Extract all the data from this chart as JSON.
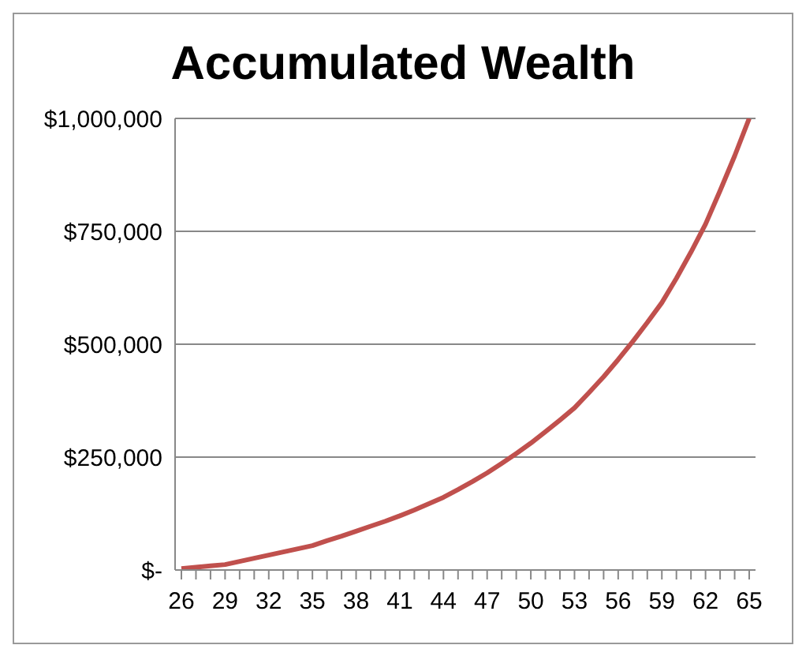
{
  "chart_data": {
    "type": "line",
    "title": "Accumulated Wealth",
    "categories": [
      "26",
      null,
      null,
      "29",
      null,
      null,
      "32",
      null,
      null,
      "35",
      null,
      null,
      "38",
      null,
      null,
      "41",
      null,
      null,
      "44",
      null,
      null,
      "47",
      null,
      null,
      "50",
      null,
      null,
      "53",
      null,
      null,
      "56",
      null,
      null,
      "59",
      null,
      null,
      "62",
      null,
      null,
      "65"
    ],
    "series": [
      {
        "color": "#c0504d",
        "values": [
          3000,
          6000,
          9000,
          12000,
          19000,
          26000,
          33000,
          40000,
          47000,
          54000,
          65000,
          75000,
          86000,
          97000,
          108000,
          120000,
          133000,
          147000,
          161000,
          178000,
          196000,
          215000,
          236000,
          258000,
          281000,
          306000,
          332000,
          359000,
          393000,
          428000,
          466000,
          506000,
          548000,
          592000,
          646000,
          704000,
          766000,
          840000,
          917000,
          1000000
        ]
      }
    ],
    "ylim": [
      0,
      1000000
    ],
    "yticks": [
      {
        "value": 0,
        "label": "$-"
      },
      {
        "value": 250000,
        "label": "$250,000"
      },
      {
        "value": 500000,
        "label": "$500,000"
      },
      {
        "value": 750000,
        "label": "$750,000"
      },
      {
        "value": 1000000,
        "label": "$1,000,000"
      }
    ],
    "grid": "y",
    "marker": "none",
    "line_style": "solid"
  }
}
